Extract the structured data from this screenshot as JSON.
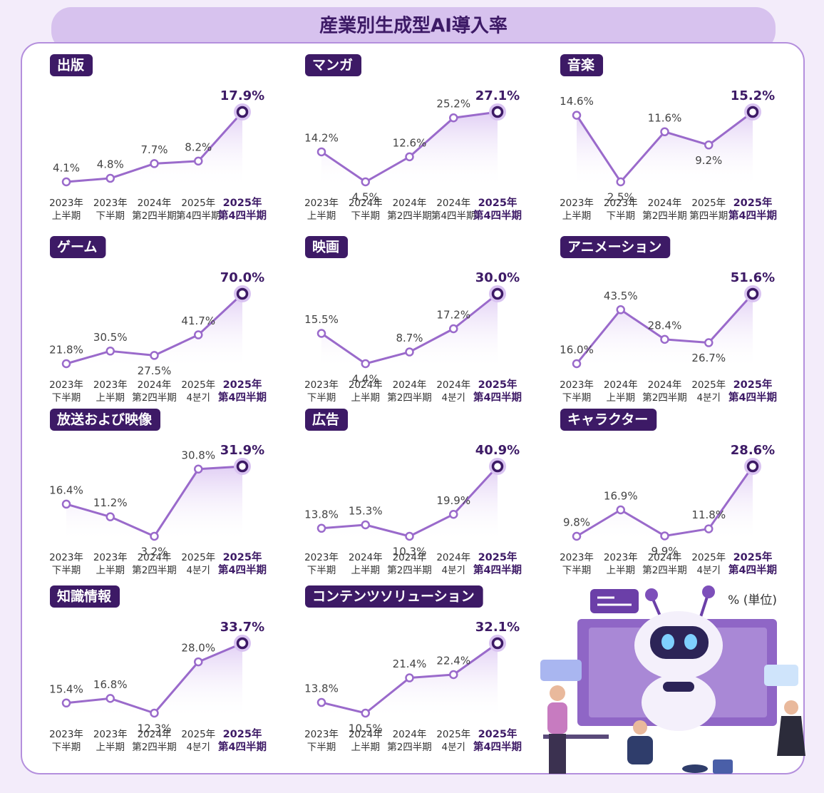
{
  "title": "産業別生成型AI導入率",
  "unit": "% (単位)",
  "chart_data": [
    {
      "type": "line",
      "title": "出版",
      "color": "#9a6acb",
      "categories": [
        [
          "2023年",
          "上半期"
        ],
        [
          "2023年",
          "下半期"
        ],
        [
          "2024年",
          "第2四半期"
        ],
        [
          "2025年",
          "第4四半期"
        ],
        [
          "2025年",
          "第4四半期"
        ]
      ],
      "values": [
        4.1,
        4.8,
        7.7,
        8.2,
        17.9
      ],
      "value_labels": [
        "4.1%",
        "4.8%",
        "7.7%",
        "8.2%",
        "17.9%"
      ]
    },
    {
      "type": "line",
      "title": "マンガ",
      "color": "#9a6acb",
      "categories": [
        [
          "2023年",
          "上半期"
        ],
        [
          "2024年",
          "下半期"
        ],
        [
          "2024年",
          "第2四半期"
        ],
        [
          "2024年",
          "第4四半期"
        ],
        [
          "2025年",
          "第4四半期"
        ]
      ],
      "values": [
        14.2,
        4.5,
        12.6,
        25.2,
        27.1
      ],
      "value_labels": [
        "14.2%",
        "4.5%",
        "12.6%",
        "25.2%",
        "27.1%"
      ]
    },
    {
      "type": "line",
      "title": "音楽",
      "color": "#9a6acb",
      "categories": [
        [
          "2023年",
          "上半期"
        ],
        [
          "2023年",
          "下半期"
        ],
        [
          "2024年",
          "第2四半期"
        ],
        [
          "2025年",
          "第四半期"
        ],
        [
          "2025年",
          "第4四半期"
        ]
      ],
      "values": [
        14.6,
        2.5,
        11.6,
        9.2,
        15.2
      ],
      "value_labels": [
        "14.6%",
        "2.5%",
        "11.6%",
        "9.2%",
        "15.2%"
      ]
    },
    {
      "type": "line",
      "title": "ゲーム",
      "color": "#9a6acb",
      "categories": [
        [
          "2023年",
          "下半期"
        ],
        [
          "2023年",
          "上半期"
        ],
        [
          "2024年",
          "第2四半期"
        ],
        [
          "2025年",
          "4분기"
        ],
        [
          "2025年",
          "第4四半期"
        ]
      ],
      "values": [
        21.8,
        30.5,
        27.5,
        41.7,
        70.0
      ],
      "value_labels": [
        "21.8%",
        "30.5%",
        "27.5%",
        "41.7%",
        "70.0%"
      ]
    },
    {
      "type": "line",
      "title": "映画",
      "color": "#9a6acb",
      "categories": [
        [
          "2023年",
          "下半期"
        ],
        [
          "2024年",
          "上半期"
        ],
        [
          "2024年",
          "第2四半期"
        ],
        [
          "2024年",
          "4분기"
        ],
        [
          "2025年",
          "第4四半期"
        ]
      ],
      "values": [
        15.5,
        4.4,
        8.7,
        17.2,
        30.0
      ],
      "value_labels": [
        "15.5%",
        "4.4%",
        "8.7%",
        "17.2%",
        "30.0%"
      ]
    },
    {
      "type": "line",
      "title": "アニメーション",
      "color": "#9a6acb",
      "categories": [
        [
          "2023年",
          "下半期"
        ],
        [
          "2024年",
          "上半期"
        ],
        [
          "2024年",
          "第2四半期"
        ],
        [
          "2025年",
          "4분기"
        ],
        [
          "2025年",
          "第4四半期"
        ]
      ],
      "values": [
        16.0,
        43.5,
        28.4,
        26.7,
        51.6
      ],
      "value_labels": [
        "16.0%",
        "43.5%",
        "28.4%",
        "26.7%",
        "51.6%"
      ]
    },
    {
      "type": "line",
      "title": "放送および映像",
      "color": "#9a6acb",
      "categories": [
        [
          "2023年",
          "下半期"
        ],
        [
          "2023年",
          "上半期"
        ],
        [
          "2024年",
          "第2四半期"
        ],
        [
          "2025年",
          "4분기"
        ],
        [
          "2025年",
          "第4四半期"
        ]
      ],
      "values": [
        16.4,
        11.2,
        3.2,
        30.8,
        31.9
      ],
      "value_labels": [
        "16.4%",
        "11.2%",
        "3.2%",
        "30.8%",
        "31.9%"
      ]
    },
    {
      "type": "line",
      "title": "広告",
      "color": "#9a6acb",
      "categories": [
        [
          "2023年",
          "下半期"
        ],
        [
          "2024年",
          "上半期"
        ],
        [
          "2024年",
          "第2四半期"
        ],
        [
          "2024年",
          "4분기"
        ],
        [
          "2025年",
          "第4四半期"
        ]
      ],
      "values": [
        13.8,
        15.3,
        10.3,
        19.9,
        40.9
      ],
      "value_labels": [
        "13.8%",
        "15.3%",
        "10.3%",
        "19.9%",
        "40.9%"
      ]
    },
    {
      "type": "line",
      "title": "キャラクター",
      "color": "#9a6acb",
      "categories": [
        [
          "2023年",
          "下半期"
        ],
        [
          "2023年",
          "上半期"
        ],
        [
          "2024年",
          "第2四半期"
        ],
        [
          "2025年",
          "4분기"
        ],
        [
          "2025年",
          "第4四半期"
        ]
      ],
      "values": [
        9.8,
        16.9,
        9.9,
        11.8,
        28.6
      ],
      "value_labels": [
        "9.8%",
        "16.9%",
        "9.9%",
        "11.8%",
        "28.6%"
      ]
    },
    {
      "type": "line",
      "title": "知識情報",
      "color": "#9a6acb",
      "categories": [
        [
          "2023年",
          "下半期"
        ],
        [
          "2023年",
          "上半期"
        ],
        [
          "2024年",
          "第2四半期"
        ],
        [
          "2025年",
          "4분기"
        ],
        [
          "2025年",
          "第4四半期"
        ]
      ],
      "values": [
        15.4,
        16.8,
        12.3,
        28.0,
        33.7
      ],
      "value_labels": [
        "15.4%",
        "16.8%",
        "12.3%",
        "28.0%",
        "33.7%"
      ]
    },
    {
      "type": "line",
      "title": "コンテンツソリューション",
      "color": "#9a6acb",
      "categories": [
        [
          "2023年",
          "下半期"
        ],
        [
          "2024年",
          "上半期"
        ],
        [
          "2024年",
          "第2四半期"
        ],
        [
          "2025年",
          "4분기"
        ],
        [
          "2025年",
          "第4四半期"
        ]
      ],
      "values": [
        13.8,
        10.5,
        21.4,
        22.4,
        32.1
      ],
      "value_labels": [
        "13.8%",
        "10.5%",
        "21.4%",
        "22.4%",
        "32.1%"
      ]
    }
  ]
}
